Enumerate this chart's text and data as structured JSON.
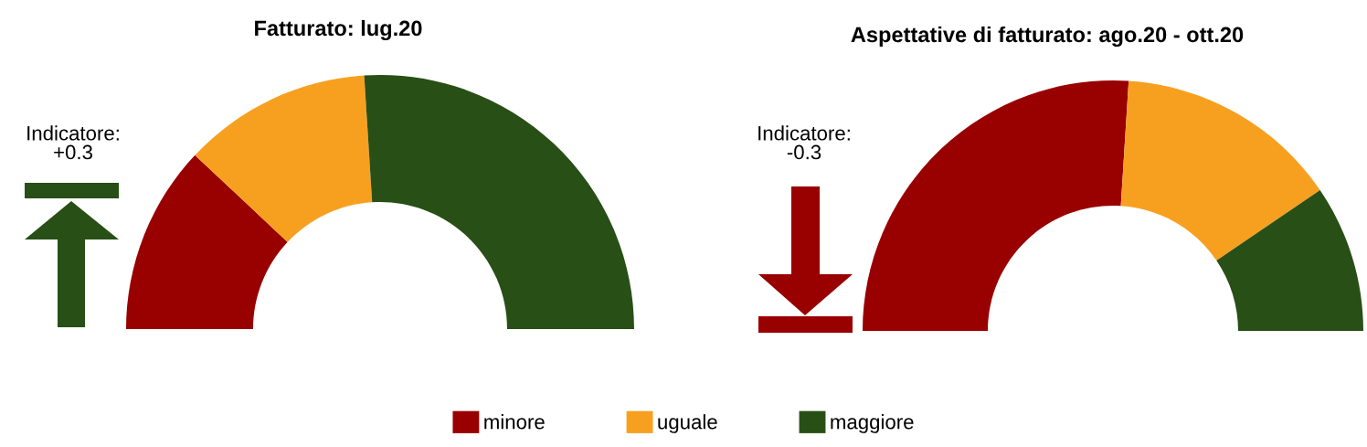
{
  "chart_data": [
    {
      "type": "donut",
      "title": "Fatturato: lug.20",
      "categories": [
        "minore",
        "uguale",
        "maggiore"
      ],
      "values": [
        24,
        24,
        52
      ],
      "colors": [
        "#990000",
        "#f7a020",
        "#284f16"
      ],
      "annotations": [
        "Indicatore:\n+0.3"
      ],
      "legend": "bottom"
    },
    {
      "type": "donut",
      "title": "Aspettative di fatturato: ago.20 - ott.20",
      "categories": [
        null,
        null,
        null
      ],
      "values": [
        52,
        29,
        19
      ],
      "colors": [
        "#990000",
        "#f7a020",
        "#284f16"
      ],
      "annotations": [
        "Indicatore:\n-0.3"
      ]
    }
  ]
}
